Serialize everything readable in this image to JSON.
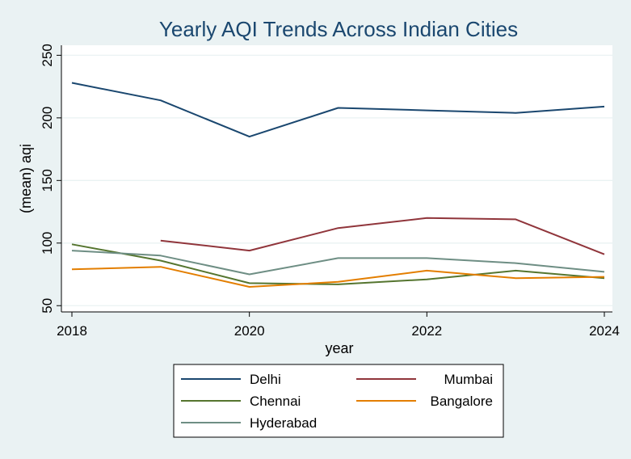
{
  "chart_data": {
    "type": "line",
    "title": "Yearly AQI Trends Across Indian Cities",
    "xlabel": "year",
    "ylabel": "(mean) aqi",
    "xlim": [
      2018,
      2024
    ],
    "ylim": [
      45,
      258
    ],
    "x_ticks": [
      2018,
      2020,
      2022,
      2024
    ],
    "y_ticks": [
      50,
      100,
      150,
      200,
      250
    ],
    "grid": true,
    "legend_position": "bottom",
    "series": [
      {
        "name": "Delhi",
        "color": "#1a476f",
        "x": [
          2018,
          2019,
          2020,
          2021,
          2022,
          2023,
          2024
        ],
        "values": [
          228,
          214,
          185,
          208,
          206,
          204,
          209
        ]
      },
      {
        "name": "Mumbai",
        "color": "#90353b",
        "x": [
          2019,
          2020,
          2021,
          2022,
          2023,
          2024
        ],
        "values": [
          102,
          94,
          112,
          120,
          119,
          91
        ]
      },
      {
        "name": "Chennai",
        "color": "#55752f",
        "x": [
          2018,
          2019,
          2020,
          2021,
          2022,
          2023,
          2024
        ],
        "values": [
          99,
          86,
          68,
          67,
          71,
          78,
          72
        ]
      },
      {
        "name": "Bangalore",
        "color": "#e37e00",
        "x": [
          2018,
          2019,
          2020,
          2021,
          2022,
          2023,
          2024
        ],
        "values": [
          79,
          81,
          65,
          69,
          78,
          72,
          73
        ]
      },
      {
        "name": "Hyderabad",
        "color": "#6e8e84",
        "x": [
          2018,
          2019,
          2020,
          2021,
          2022,
          2023,
          2024
        ],
        "values": [
          94,
          90,
          75,
          88,
          88,
          84,
          77
        ]
      }
    ]
  }
}
